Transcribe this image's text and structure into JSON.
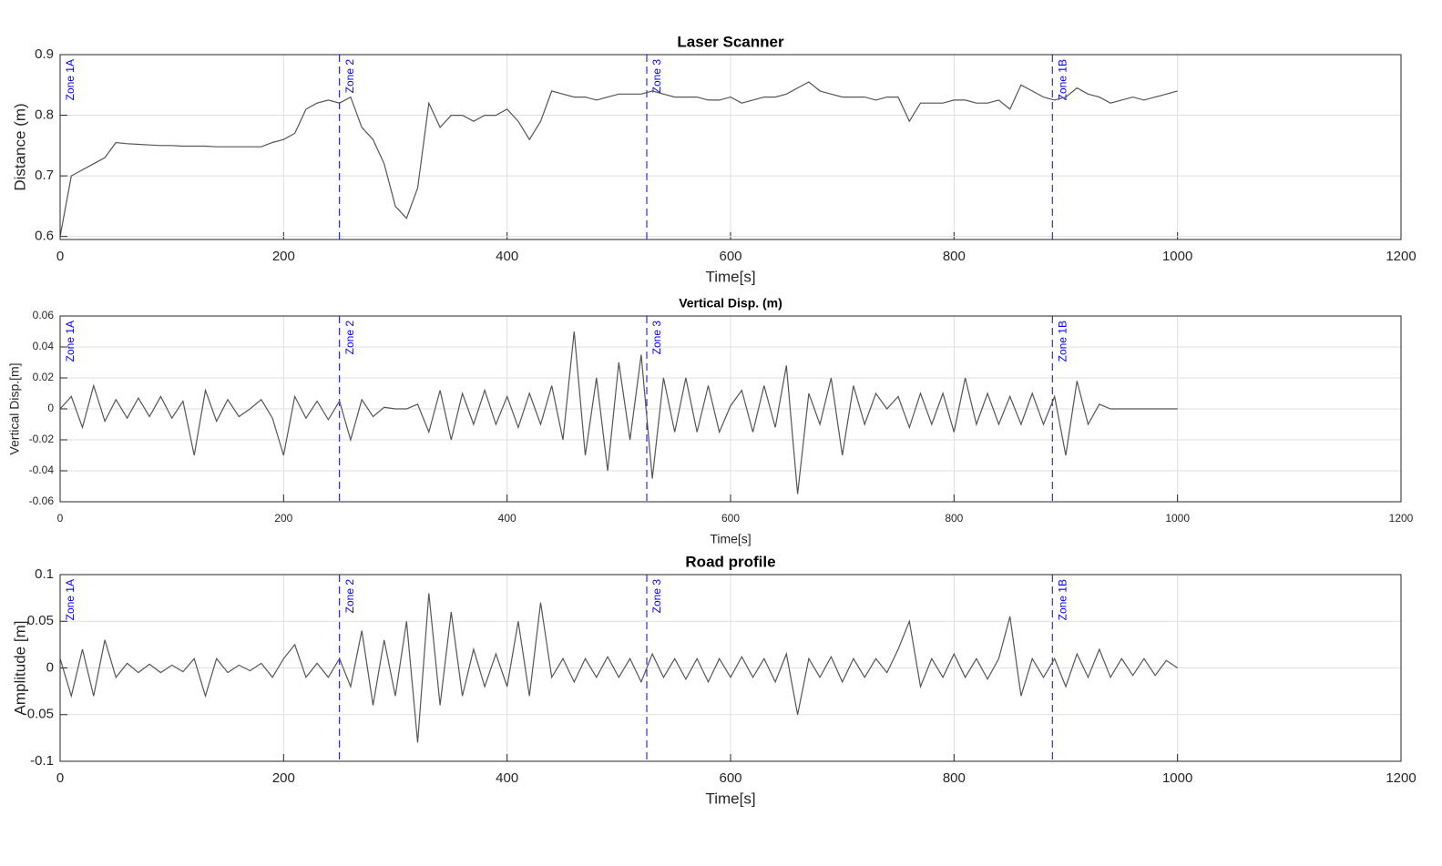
{
  "chart_data": [
    {
      "type": "line",
      "title": "Laser Scanner",
      "xlabel": "Time[s]",
      "ylabel": "Distance (m)",
      "color": "#555555",
      "grid": true,
      "xlim": [
        0,
        1200
      ],
      "xticks": [
        0,
        200,
        400,
        600,
        800,
        1000,
        1200
      ],
      "ylim": [
        0.595,
        0.9
      ],
      "yticks": [
        0.6,
        0.7,
        0.8,
        0.9
      ],
      "annotations": [
        {
          "label": "Zone 1A",
          "x": 0
        },
        {
          "label": "Zone 2",
          "x": 250
        },
        {
          "label": "Zone 3",
          "x": 525
        },
        {
          "label": "Zone 1B",
          "x": 888
        }
      ],
      "x": [
        0,
        10,
        20,
        30,
        40,
        50,
        60,
        70,
        80,
        90,
        100,
        110,
        120,
        130,
        140,
        150,
        160,
        170,
        180,
        190,
        200,
        210,
        220,
        230,
        240,
        250,
        260,
        270,
        280,
        290,
        300,
        310,
        320,
        330,
        340,
        350,
        360,
        370,
        380,
        390,
        400,
        410,
        420,
        430,
        440,
        450,
        460,
        470,
        480,
        490,
        500,
        510,
        520,
        530,
        540,
        550,
        560,
        570,
        580,
        590,
        600,
        610,
        620,
        630,
        640,
        650,
        660,
        670,
        680,
        690,
        700,
        710,
        720,
        730,
        740,
        750,
        760,
        770,
        780,
        790,
        800,
        810,
        820,
        830,
        840,
        850,
        860,
        870,
        880,
        890,
        900,
        910,
        920,
        930,
        940,
        950,
        960,
        970,
        980,
        990,
        1000
      ],
      "values": [
        0.6,
        0.7,
        0.71,
        0.72,
        0.73,
        0.755,
        0.753,
        0.752,
        0.751,
        0.75,
        0.75,
        0.749,
        0.749,
        0.749,
        0.748,
        0.748,
        0.748,
        0.748,
        0.748,
        0.755,
        0.76,
        0.77,
        0.81,
        0.82,
        0.825,
        0.82,
        0.83,
        0.78,
        0.76,
        0.72,
        0.65,
        0.63,
        0.68,
        0.82,
        0.78,
        0.8,
        0.8,
        0.79,
        0.8,
        0.8,
        0.81,
        0.79,
        0.76,
        0.79,
        0.84,
        0.835,
        0.83,
        0.83,
        0.825,
        0.83,
        0.835,
        0.835,
        0.835,
        0.84,
        0.835,
        0.83,
        0.83,
        0.83,
        0.825,
        0.825,
        0.83,
        0.82,
        0.825,
        0.83,
        0.83,
        0.835,
        0.845,
        0.855,
        0.84,
        0.835,
        0.83,
        0.83,
        0.83,
        0.825,
        0.83,
        0.83,
        0.79,
        0.82,
        0.82,
        0.82,
        0.825,
        0.825,
        0.82,
        0.82,
        0.825,
        0.81,
        0.85,
        0.84,
        0.83,
        0.825,
        0.83,
        0.845,
        0.835,
        0.83,
        0.82,
        0.825,
        0.83,
        0.825,
        0.83,
        0.835,
        0.84
      ]
    },
    {
      "type": "line",
      "title": "Vertical Disp. (m)",
      "xlabel": "Time[s]",
      "ylabel": "Vertical Disp.[m]",
      "color": "#555555",
      "grid": true,
      "xlim": [
        0,
        1200
      ],
      "xticks": [
        0,
        200,
        400,
        600,
        800,
        1000,
        1200
      ],
      "ylim": [
        -0.06,
        0.06
      ],
      "yticks": [
        -0.06,
        -0.04,
        -0.02,
        0,
        0.02,
        0.04,
        0.06
      ],
      "annotations": [
        {
          "label": "Zone 1A",
          "x": 0
        },
        {
          "label": "Zone 2",
          "x": 250
        },
        {
          "label": "Zone 3",
          "x": 525
        },
        {
          "label": "Zone 1B",
          "x": 888
        }
      ],
      "x": [
        0,
        10,
        20,
        30,
        40,
        50,
        60,
        70,
        80,
        90,
        100,
        110,
        120,
        130,
        140,
        150,
        160,
        170,
        180,
        190,
        200,
        210,
        220,
        230,
        240,
        250,
        260,
        270,
        280,
        290,
        300,
        310,
        320,
        330,
        340,
        350,
        360,
        370,
        380,
        390,
        400,
        410,
        420,
        430,
        440,
        450,
        460,
        470,
        480,
        490,
        500,
        510,
        520,
        530,
        540,
        550,
        560,
        570,
        580,
        590,
        600,
        610,
        620,
        630,
        640,
        650,
        660,
        670,
        680,
        690,
        700,
        710,
        720,
        730,
        740,
        750,
        760,
        770,
        780,
        790,
        800,
        810,
        820,
        830,
        840,
        850,
        860,
        870,
        880,
        890,
        900,
        910,
        920,
        930,
        940,
        950,
        960,
        970,
        980,
        990,
        1000
      ],
      "values": [
        0,
        0.008,
        -0.012,
        0.015,
        -0.008,
        0.006,
        -0.006,
        0.007,
        -0.005,
        0.008,
        -0.006,
        0.005,
        -0.03,
        0.012,
        -0.008,
        0.006,
        -0.005,
        0,
        0.006,
        -0.006,
        -0.03,
        0.008,
        -0.006,
        0.005,
        -0.007,
        0.005,
        -0.02,
        0.006,
        -0.005,
        0.001,
        0,
        0,
        0.003,
        -0.015,
        0.012,
        -0.02,
        0.01,
        -0.01,
        0.012,
        -0.01,
        0.008,
        -0.012,
        0.01,
        -0.01,
        0.015,
        -0.02,
        0.05,
        -0.03,
        0.02,
        -0.04,
        0.03,
        -0.02,
        0.035,
        -0.045,
        0.02,
        -0.015,
        0.02,
        -0.015,
        0.015,
        -0.015,
        0.002,
        0.012,
        -0.015,
        0.015,
        -0.012,
        0.028,
        -0.055,
        0.01,
        -0.01,
        0.02,
        -0.03,
        0.015,
        -0.01,
        0.01,
        0,
        0.008,
        -0.012,
        0.01,
        -0.01,
        0.01,
        -0.015,
        0.02,
        -0.01,
        0.01,
        -0.01,
        0.008,
        -0.01,
        0.01,
        -0.01,
        0.008,
        -0.03,
        0.018,
        -0.01,
        0.003,
        0,
        0,
        0,
        0,
        0,
        0,
        0
      ]
    },
    {
      "type": "line",
      "title": "Road profile",
      "xlabel": "Time[s]",
      "ylabel": "Amplitude [m]",
      "color": "#555555",
      "grid": true,
      "xlim": [
        0,
        1200
      ],
      "xticks": [
        0,
        200,
        400,
        600,
        800,
        1000,
        1200
      ],
      "ylim": [
        -0.1,
        0.1
      ],
      "yticks": [
        -0.1,
        -0.05,
        0,
        0.05,
        0.1
      ],
      "annotations": [
        {
          "label": "Zone 1A",
          "x": 0
        },
        {
          "label": "Zone 2",
          "x": 250
        },
        {
          "label": "Zone 3",
          "x": 525
        },
        {
          "label": "Zone 1B",
          "x": 888
        }
      ],
      "x": [
        0,
        10,
        20,
        30,
        40,
        50,
        60,
        70,
        80,
        90,
        100,
        110,
        120,
        130,
        140,
        150,
        160,
        170,
        180,
        190,
        200,
        210,
        220,
        230,
        240,
        250,
        260,
        270,
        280,
        290,
        300,
        310,
        320,
        330,
        340,
        350,
        360,
        370,
        380,
        390,
        400,
        410,
        420,
        430,
        440,
        450,
        460,
        470,
        480,
        490,
        500,
        510,
        520,
        530,
        540,
        550,
        560,
        570,
        580,
        590,
        600,
        610,
        620,
        630,
        640,
        650,
        660,
        670,
        680,
        690,
        700,
        710,
        720,
        730,
        740,
        750,
        760,
        770,
        780,
        790,
        800,
        810,
        820,
        830,
        840,
        850,
        860,
        870,
        880,
        890,
        900,
        910,
        920,
        930,
        940,
        950,
        960,
        970,
        980,
        990,
        1000
      ],
      "values": [
        0.01,
        -0.03,
        0.02,
        -0.03,
        0.03,
        -0.01,
        0.005,
        -0.005,
        0.004,
        -0.005,
        0.003,
        -0.004,
        0.01,
        -0.03,
        0.01,
        -0.005,
        0.003,
        -0.003,
        0.005,
        -0.01,
        0.01,
        0.025,
        -0.01,
        0.005,
        -0.01,
        0.01,
        -0.02,
        0.04,
        -0.04,
        0.03,
        -0.03,
        0.05,
        -0.08,
        0.08,
        -0.04,
        0.06,
        -0.03,
        0.02,
        -0.02,
        0.015,
        -0.02,
        0.05,
        -0.03,
        0.07,
        -0.01,
        0.01,
        -0.015,
        0.01,
        -0.01,
        0.012,
        -0.01,
        0.01,
        -0.015,
        0.015,
        -0.01,
        0.01,
        -0.012,
        0.01,
        -0.015,
        0.01,
        -0.01,
        0.012,
        -0.01,
        0.01,
        -0.015,
        0.015,
        -0.05,
        0.01,
        -0.01,
        0.012,
        -0.015,
        0.01,
        -0.01,
        0.01,
        -0.005,
        0.02,
        0.05,
        -0.02,
        0.01,
        -0.01,
        0.015,
        -0.01,
        0.01,
        -0.012,
        0.01,
        0.055,
        -0.03,
        0.01,
        -0.01,
        0.01,
        -0.02,
        0.015,
        -0.01,
        0.02,
        -0.01,
        0.01,
        -0.008,
        0.01,
        -0.008,
        0.008,
        0
      ]
    }
  ]
}
